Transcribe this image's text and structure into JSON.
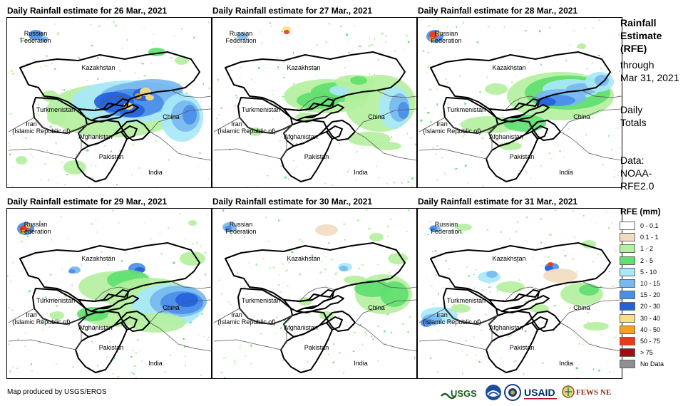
{
  "panels": [
    {
      "title": "Daily Rainfall estimate for 26 Mar., 2021",
      "day": 26
    },
    {
      "title": "Daily Rainfall estimate for 27 Mar., 2021",
      "day": 27
    },
    {
      "title": "Daily Rainfall estimate for 28 Mar., 2021",
      "day": 28
    },
    {
      "title": "Daily Rainfall estimate for 29 Mar., 2021",
      "day": 29
    },
    {
      "title": "Daily Rainfall estimate for 30 Mar., 2021",
      "day": 30
    },
    {
      "title": "Daily Rainfall estimate for 31 Mar., 2021",
      "day": 31
    }
  ],
  "map_labels": {
    "russia_1": "Russian",
    "russia_2": "Federation",
    "kazakhstan": "Kazakhstan",
    "turkmenistan": "Turkmenistan",
    "china": "China",
    "iran_1": "Iran",
    "iran_2": "(Islamic Republic of)",
    "afghanistan": "Afghanistan",
    "pakistan": "Pakistan",
    "india": "India"
  },
  "sidebar": {
    "rfe_line1": "Rainfall",
    "rfe_line2": "Estimate",
    "rfe_line3": "(RFE)",
    "through": "through",
    "date": "Mar 31, 2021",
    "daily_1": "Daily",
    "daily_2": "Totals",
    "data_1": "Data:",
    "data_2": "NOAA-",
    "data_3": "RFE2.0"
  },
  "legend": {
    "title": "RFE (mm)",
    "items": [
      {
        "label": "0 - 0.1",
        "color": "#ffffff"
      },
      {
        "label": "0.1 - 1",
        "color": "#f2dcc0"
      },
      {
        "label": "1 - 2",
        "color": "#b4f0a0"
      },
      {
        "label": "2 - 5",
        "color": "#60e070"
      },
      {
        "label": "5 - 10",
        "color": "#a8e8f8"
      },
      {
        "label": "10 - 15",
        "color": "#78b8f0"
      },
      {
        "label": "15 - 20",
        "color": "#4a8ee8"
      },
      {
        "label": "20 - 30",
        "color": "#2462dc"
      },
      {
        "label": "30 - 40",
        "color": "#f8e080"
      },
      {
        "label": "40 - 50",
        "color": "#f8a020"
      },
      {
        "label": "50 - 75",
        "color": "#f03818"
      },
      {
        "label": "> 75",
        "color": "#a01010"
      },
      {
        "label": "No Data",
        "color": "#909090"
      }
    ]
  },
  "footer": {
    "credit": "Map produced by USGS/EROS",
    "logo_usgs": "USGS",
    "logo_usaid": "USAID",
    "logo_fews": "FEWS NET"
  }
}
